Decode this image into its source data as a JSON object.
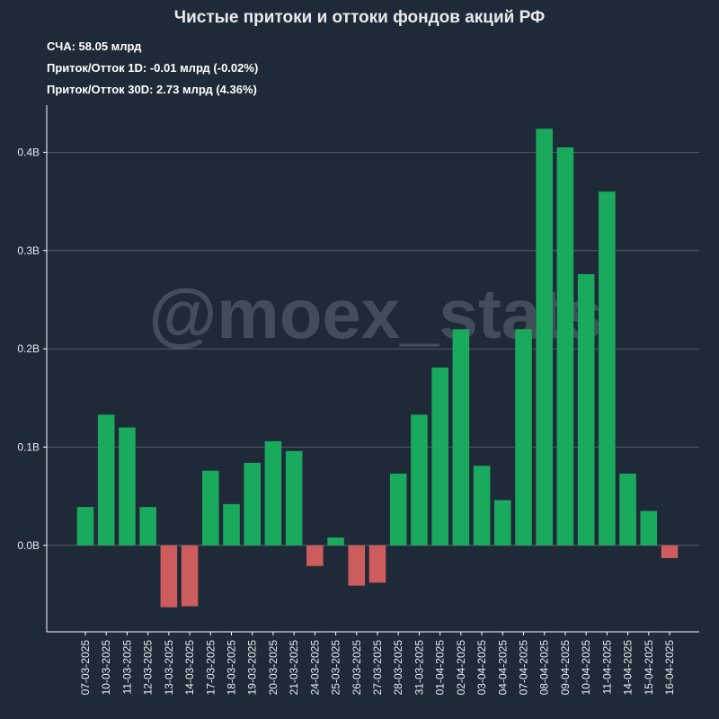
{
  "chart_data": {
    "type": "bar",
    "title": "Чистые притоки и оттоки фондов акций РФ",
    "info_lines": [
      "СЧА: 58.05 млрд",
      "Приток/Отток 1D: -0.01 млрд (-0.02%)",
      "Приток/Отток 30D: 2.73 млрд (4.36%)"
    ],
    "watermark": "@moex_stats",
    "categories": [
      "07-03-2025",
      "10-03-2025",
      "11-03-2025",
      "12-03-2025",
      "13-03-2025",
      "14-03-2025",
      "17-03-2025",
      "18-03-2025",
      "19-03-2025",
      "20-03-2025",
      "21-03-2025",
      "24-03-2025",
      "25-03-2025",
      "26-03-2025",
      "27-03-2025",
      "28-03-2025",
      "31-03-2025",
      "01-04-2025",
      "02-04-2025",
      "03-04-2025",
      "04-04-2025",
      "07-04-2025",
      "08-04-2025",
      "09-04-2025",
      "10-04-2025",
      "11-04-2025",
      "14-04-2025",
      "15-04-2025",
      "16-04-2025"
    ],
    "values": [
      0.039,
      0.133,
      0.12,
      0.039,
      -0.063,
      -0.062,
      0.076,
      0.042,
      0.084,
      0.106,
      0.096,
      -0.021,
      0.008,
      -0.041,
      -0.038,
      0.073,
      0.133,
      0.181,
      0.22,
      0.081,
      0.046,
      0.22,
      0.424,
      0.405,
      0.276,
      0.36,
      0.073,
      0.035,
      -0.013
    ],
    "y_ticks": [
      0.0,
      0.1,
      0.2,
      0.3,
      0.4
    ],
    "y_tick_labels": [
      "0.0B",
      "0.1B",
      "0.2B",
      "0.3B",
      "0.4B"
    ],
    "ylim": [
      -0.088,
      0.448
    ],
    "grid": true,
    "colors": {
      "positive": "#1aaa5e",
      "negative": "#cd5c5c",
      "background": "#1f2a38",
      "grid": "#5f6a76"
    }
  }
}
